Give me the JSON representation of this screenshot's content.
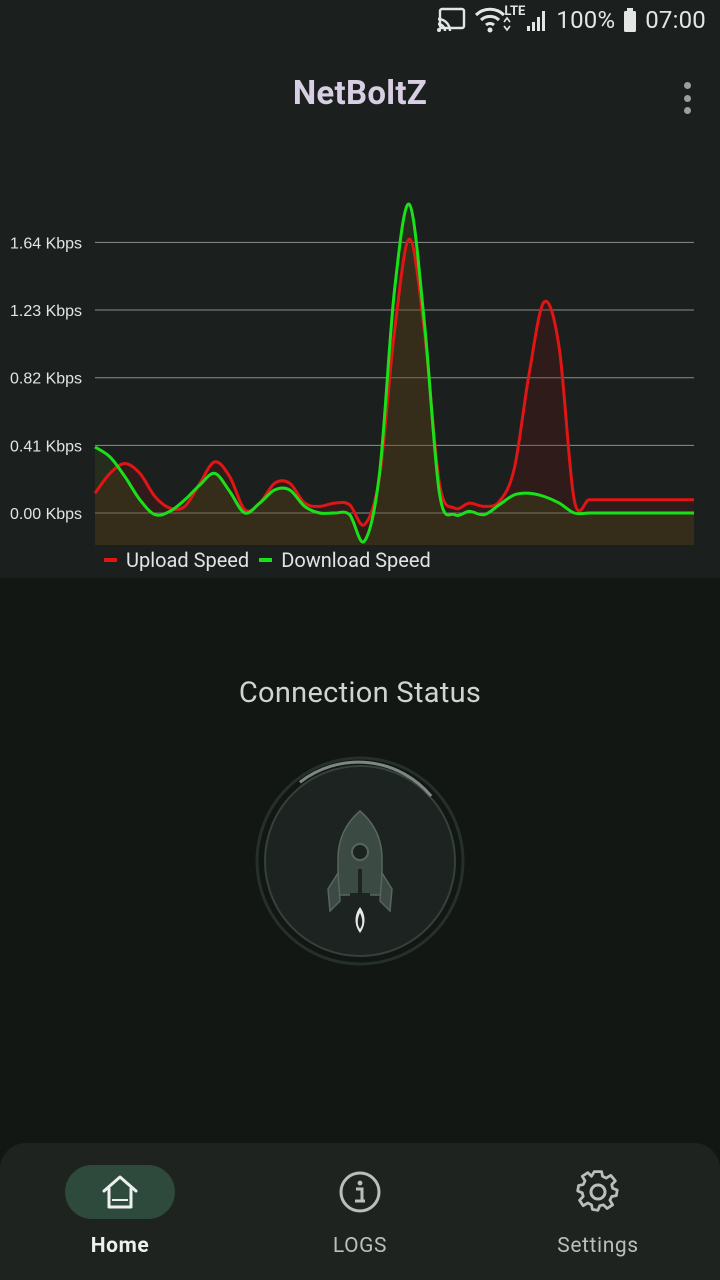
{
  "status_bar": {
    "network_type": "LTE",
    "battery": "100%",
    "time": "07:00",
    "icons": [
      "cast-icon",
      "wifi-icon",
      "signal-icon",
      "battery-icon"
    ]
  },
  "app_bar": {
    "title": "NetBoltZ",
    "menu_icon": "more-vert-icon"
  },
  "colors": {
    "upload": "#e01515",
    "download": "#19e019",
    "accent": "#2d4a3c",
    "background": "#121714"
  },
  "chart_data": {
    "type": "line",
    "title": "",
    "xlabel": "",
    "ylabel": "",
    "y_ticks": [
      "1.64 Kbps",
      "1.23 Kbps",
      "0.82 Kbps",
      "0.41 Kbps",
      "0.00 Kbps"
    ],
    "y_tick_values": [
      1.64,
      1.23,
      0.82,
      0.41,
      0.0
    ],
    "ylim": [
      -0.19,
      1.9
    ],
    "legend_position": "bottom-left",
    "x": [
      0,
      1,
      2,
      3,
      4,
      5,
      6,
      7,
      8,
      9,
      10,
      11,
      12,
      13,
      14,
      15,
      16,
      17,
      18,
      19,
      20,
      21,
      22,
      23,
      24,
      25,
      26,
      27,
      28,
      29,
      30,
      31,
      32,
      33,
      34,
      35,
      36,
      37,
      38,
      39,
      40
    ],
    "series": [
      {
        "name": "Upload Speed",
        "color": "#e01515",
        "values": [
          0.12,
          0.24,
          0.3,
          0.24,
          0.1,
          0.03,
          0.04,
          0.18,
          0.31,
          0.22,
          0.02,
          0.06,
          0.18,
          0.18,
          0.06,
          0.04,
          0.06,
          0.05,
          -0.07,
          0.22,
          1.1,
          1.66,
          1.1,
          0.18,
          0.03,
          0.06,
          0.04,
          0.07,
          0.27,
          0.85,
          1.28,
          1.0,
          0.08,
          0.08,
          0.08,
          0.08,
          0.08,
          0.08,
          0.08,
          0.08,
          0.08
        ]
      },
      {
        "name": "Download Speed",
        "color": "#19e019",
        "values": [
          0.4,
          0.34,
          0.22,
          0.08,
          -0.01,
          0.01,
          0.08,
          0.17,
          0.24,
          0.13,
          0.0,
          0.06,
          0.14,
          0.14,
          0.04,
          0.0,
          0.0,
          -0.01,
          -0.17,
          0.24,
          1.35,
          1.87,
          1.15,
          0.12,
          -0.01,
          0.01,
          -0.01,
          0.05,
          0.11,
          0.12,
          0.1,
          0.06,
          0.0,
          0.0,
          0.0,
          0.0,
          0.0,
          0.0,
          0.0,
          0.0,
          0.0
        ]
      }
    ]
  },
  "connection": {
    "title": "Connection Status",
    "button_icon": "rocket-icon"
  },
  "bottom_nav": {
    "items": [
      {
        "label": "Home",
        "icon": "home-icon",
        "active": true
      },
      {
        "label": "LOGS",
        "icon": "info-icon",
        "active": false
      },
      {
        "label": "Settings",
        "icon": "gear-icon",
        "active": false
      }
    ]
  }
}
